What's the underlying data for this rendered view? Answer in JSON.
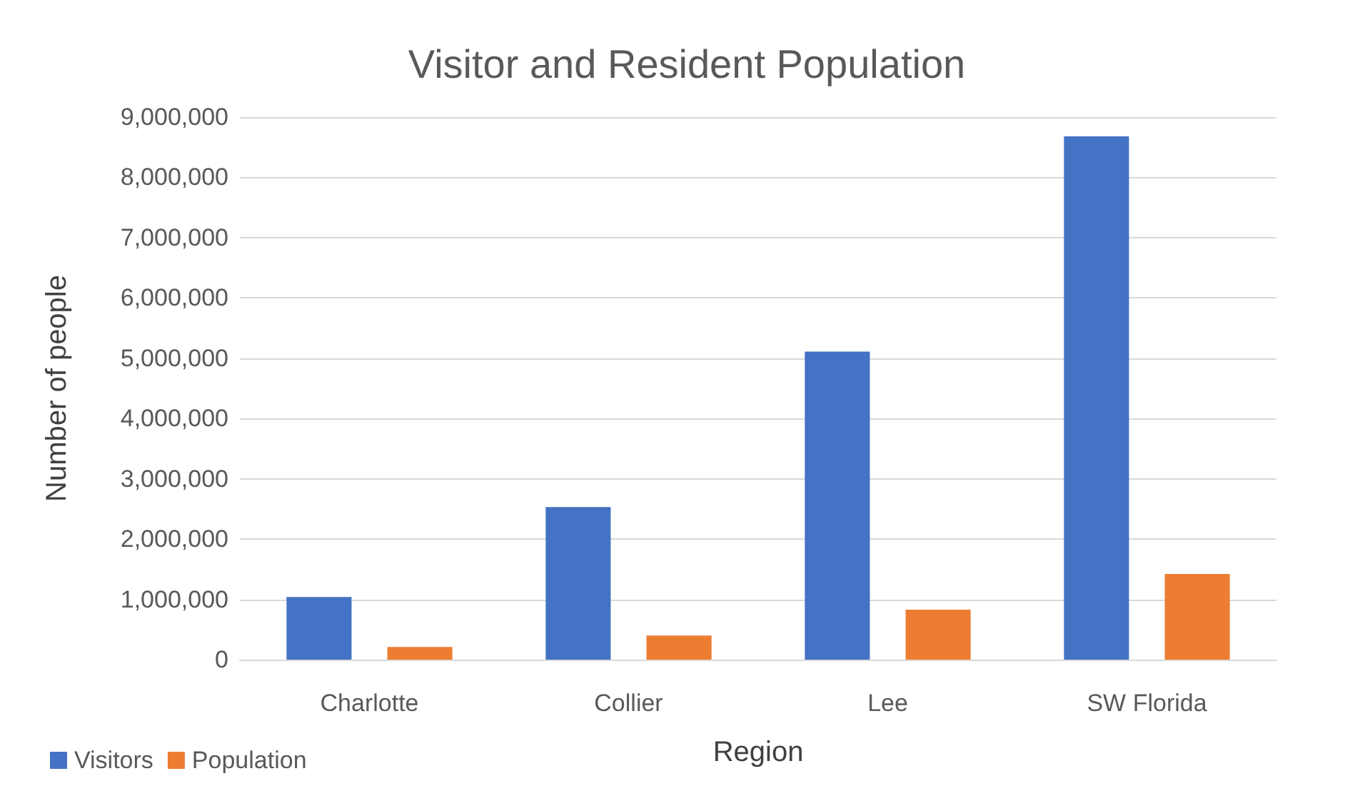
{
  "chart_data": {
    "type": "bar",
    "title": "Visitor and Resident Population",
    "xlabel": "Region",
    "ylabel": "Number of people",
    "categories": [
      "Charlotte",
      "Collier",
      "Lee",
      "SW Florida"
    ],
    "series": [
      {
        "name": "Visitors",
        "color": "#4472c4",
        "values": [
          1040000,
          2530000,
          5110000,
          8680000
        ]
      },
      {
        "name": "Population",
        "color": "#ed7d31",
        "values": [
          210000,
          400000,
          830000,
          1420000
        ]
      }
    ],
    "ylim": [
      0,
      9000000
    ],
    "yticks": [
      {
        "value": 0,
        "label": "0"
      },
      {
        "value": 1000000,
        "label": "1,000,000"
      },
      {
        "value": 2000000,
        "label": "2,000,000"
      },
      {
        "value": 3000000,
        "label": "3,000,000"
      },
      {
        "value": 4000000,
        "label": "4,000,000"
      },
      {
        "value": 5000000,
        "label": "5,000,000"
      },
      {
        "value": 6000000,
        "label": "6,000,000"
      },
      {
        "value": 7000000,
        "label": "7,000,000"
      },
      {
        "value": 8000000,
        "label": "8,000,000"
      },
      {
        "value": 9000000,
        "label": "9,000,000"
      }
    ],
    "grid": true,
    "legend": "bottom left"
  }
}
